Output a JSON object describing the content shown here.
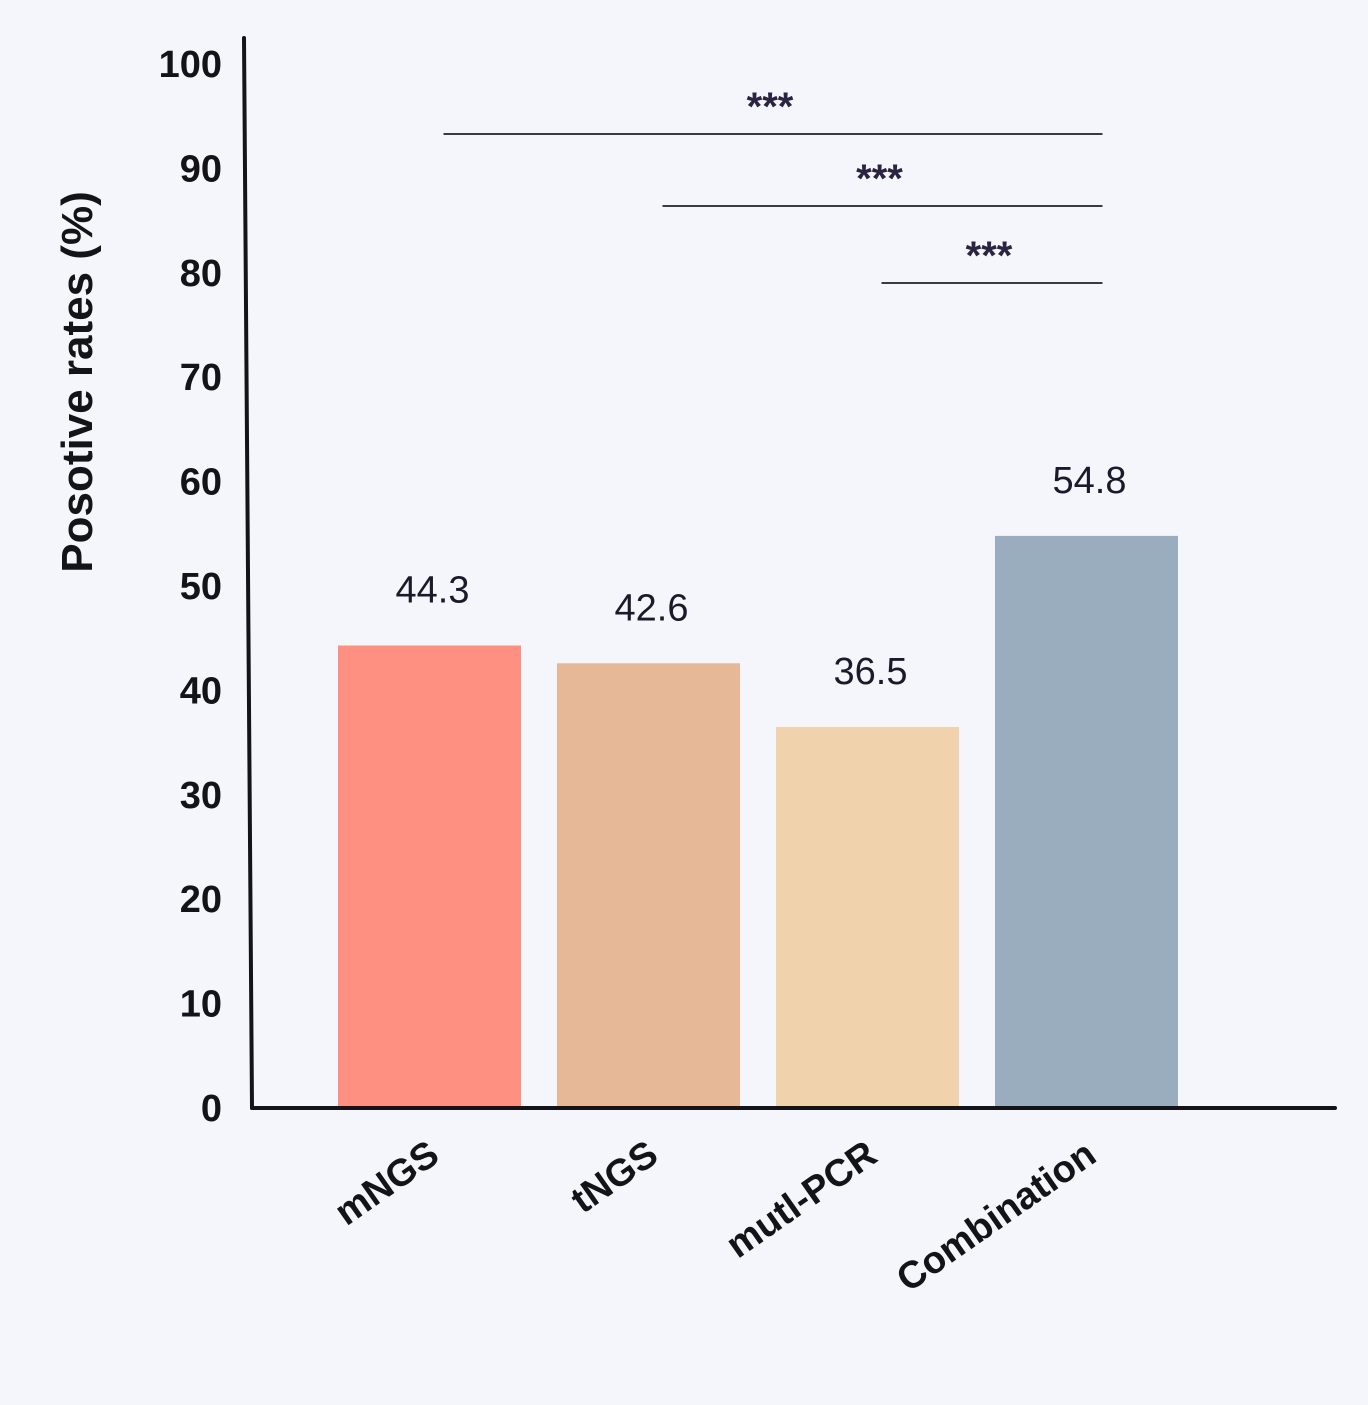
{
  "chart_data": {
    "type": "bar",
    "categories": [
      "mNGS",
      "tNGS",
      "mutl-PCR",
      "Combination"
    ],
    "values": [
      44.3,
      42.6,
      36.5,
      54.8
    ],
    "value_labels": [
      "44.3",
      "42.6",
      "36.5",
      "54.8"
    ],
    "colors": [
      "#fd9080",
      "#e6b898",
      "#f0d2ac",
      "#9aadbe"
    ],
    "title": "",
    "xlabel": "",
    "ylabel": "Posotive rates (%)",
    "ylim": [
      0,
      100
    ],
    "yticks": [
      0,
      10,
      20,
      30,
      40,
      50,
      60,
      70,
      80,
      90,
      100
    ],
    "ytick_labels": [
      "0",
      "10",
      "20",
      "30",
      "40",
      "50",
      "60",
      "70",
      "80",
      "90",
      "100"
    ],
    "grid": false,
    "legend": "none",
    "significance": [
      {
        "from": "mNGS",
        "to": "Combination",
        "label": "***"
      },
      {
        "from": "tNGS",
        "to": "Combination",
        "label": "***"
      },
      {
        "from": "mutl-PCR",
        "to": "Combination",
        "label": "***"
      }
    ]
  }
}
